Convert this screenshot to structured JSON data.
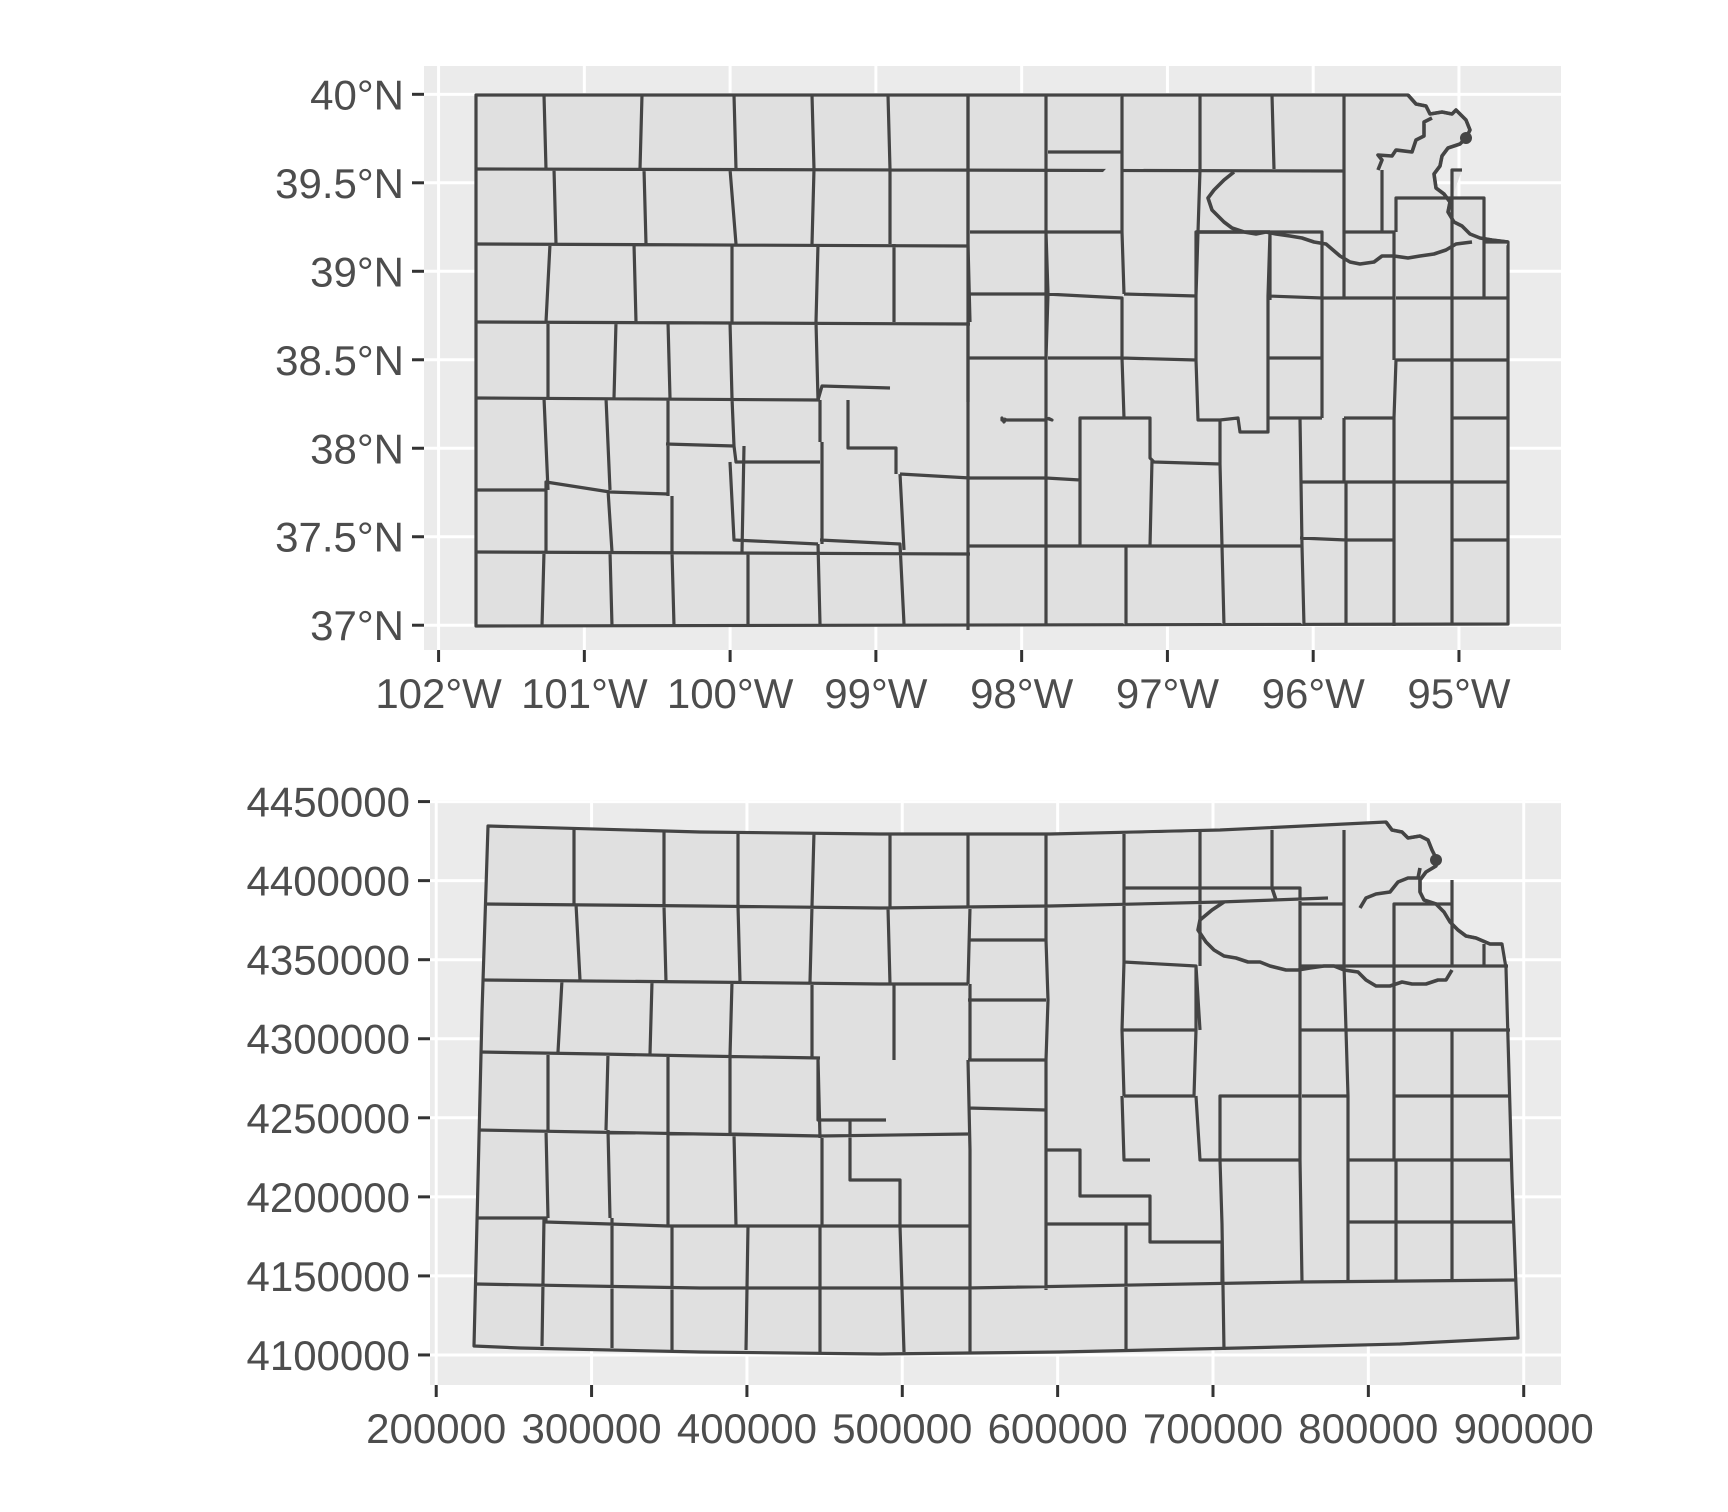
{
  "panels": [
    {
      "id": "geographic",
      "crs": "longitude/latitude",
      "x_ticks": [
        {
          "value": -102,
          "label": "102°W"
        },
        {
          "value": -101,
          "label": "101°W"
        },
        {
          "value": -100,
          "label": "100°W"
        },
        {
          "value": -99,
          "label": "99°W"
        },
        {
          "value": -98,
          "label": "98°W"
        },
        {
          "value": -97,
          "label": "97°W"
        },
        {
          "value": -96,
          "label": "96°W"
        },
        {
          "value": -95,
          "label": "95°W"
        }
      ],
      "y_ticks": [
        {
          "value": 40.0,
          "label": "40°N"
        },
        {
          "value": 39.5,
          "label": "39.5°N"
        },
        {
          "value": 39.0,
          "label": "39°N"
        },
        {
          "value": 38.5,
          "label": "38.5°N"
        },
        {
          "value": 38.0,
          "label": "38°N"
        },
        {
          "value": 37.5,
          "label": "37.5°N"
        },
        {
          "value": 37.0,
          "label": "37°N"
        }
      ],
      "xlim": [
        -102.1,
        -94.3
      ],
      "ylim": [
        36.86,
        40.16
      ]
    },
    {
      "id": "projected",
      "crs": "projected (meters)",
      "x_ticks": [
        {
          "value": 200000,
          "label": "200000"
        },
        {
          "value": 300000,
          "label": "300000"
        },
        {
          "value": 400000,
          "label": "400000"
        },
        {
          "value": 500000,
          "label": "500000"
        },
        {
          "value": 600000,
          "label": "600000"
        },
        {
          "value": 700000,
          "label": "700000"
        },
        {
          "value": 800000,
          "label": "800000"
        },
        {
          "value": 900000,
          "label": "900000"
        }
      ],
      "y_ticks": [
        {
          "value": 4450000,
          "label": "4450000"
        },
        {
          "value": 4400000,
          "label": "4400000"
        },
        {
          "value": 4350000,
          "label": "4350000"
        },
        {
          "value": 4300000,
          "label": "4300000"
        },
        {
          "value": 4250000,
          "label": "4250000"
        },
        {
          "value": 4200000,
          "label": "4200000"
        },
        {
          "value": 4150000,
          "label": "4150000"
        },
        {
          "value": 4100000,
          "label": "4100000"
        }
      ],
      "xlim": [
        196000,
        924000
      ],
      "ylim": [
        4081000,
        4451000
      ]
    }
  ],
  "colors": {
    "panel_background": "#ebebeb",
    "gridline": "#ffffff",
    "county_fill": "#e0e0e0",
    "county_border": "#444444",
    "axis_text": "#4d4d4d"
  }
}
